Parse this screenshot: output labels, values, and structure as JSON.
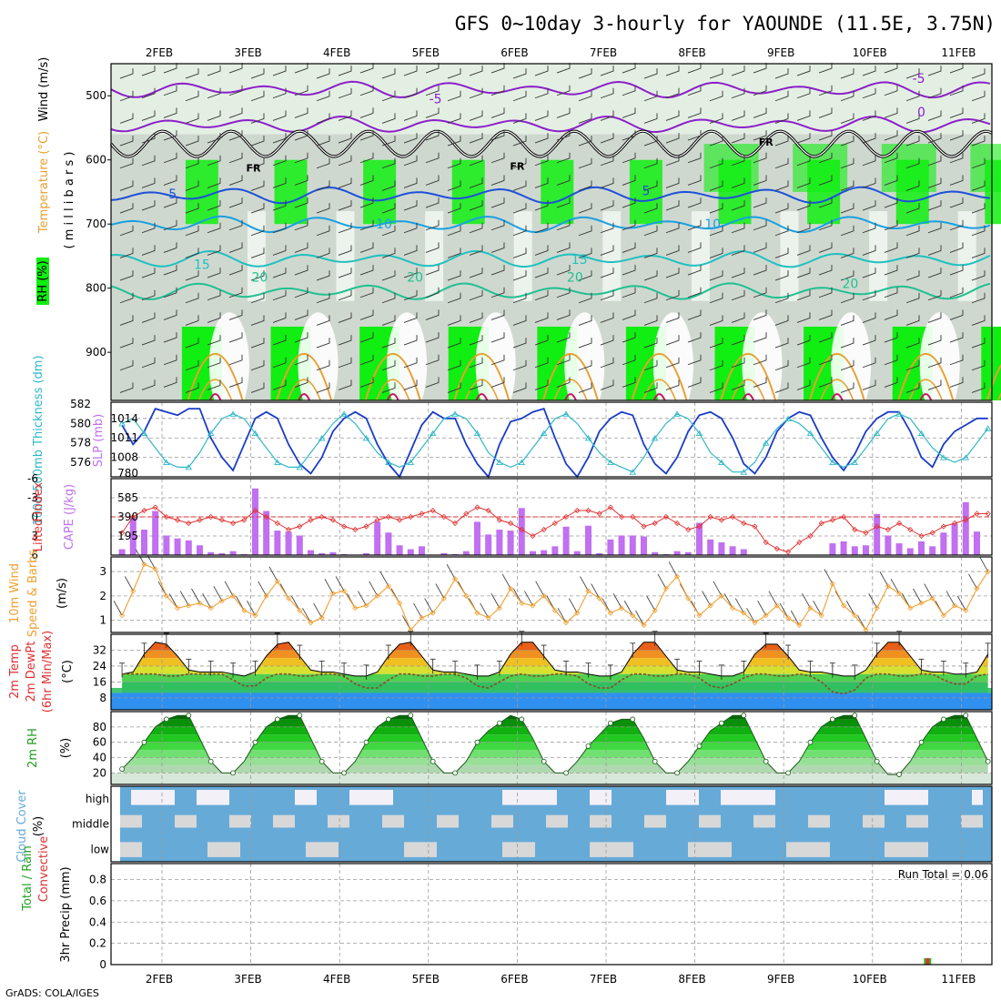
{
  "title": "GFS 0~10day 3-hourly for YAOUNDE (11.5E, 3.75N)",
  "footer": "GrADS: COLA/IGES",
  "dates": [
    "2FEB",
    "3FEB",
    "4FEB",
    "5FEB",
    "6FEB",
    "7FEB",
    "8FEB",
    "9FEB",
    "10FEB",
    "11FEB"
  ],
  "colors": {
    "rh_green": "#11ee11",
    "temp_violet": "#8a20c8",
    "temp_blue": "#1e50d8",
    "temp_sky": "#1aa0e0",
    "temp_teal": "#20c0c0",
    "temp_green": "#20c090",
    "temp_orange": "#e8a030",
    "temp_magenta": "#d0106a",
    "slp": "#1a3cc8",
    "thickness": "#30b8c8",
    "cape": "#c070f0",
    "lifted": "#e03030",
    "wind10": "#f0a030",
    "rh2m": "#20a020",
    "cloud": "#66aad8",
    "cloud_clear": "#d8d8d8",
    "cloud_high_clear": "#f4f0f8"
  },
  "chart_data": [
    {
      "type": "heatmap",
      "panel": "upper-air",
      "ylabel_parts": [
        "RH (%)",
        "Temperature (°C)",
        "Wind (m/s)"
      ],
      "ylabel_unit": "( m i l l i b a r s )",
      "y_ticks": [
        500,
        600,
        700,
        800,
        900
      ],
      "ylim": [
        975,
        450
      ],
      "temperature_contours": [
        {
          "label": "-5",
          "pressure": 490,
          "color_key": "temp_violet"
        },
        {
          "label": "0",
          "pressure": 545,
          "color_key": "temp_violet"
        },
        {
          "label": "5",
          "pressure": 655,
          "color_key": "temp_blue"
        },
        {
          "label": "10",
          "pressure": 700,
          "color_key": "temp_sky"
        },
        {
          "label": "15",
          "pressure": 755,
          "color_key": "temp_teal"
        },
        {
          "label": "20",
          "pressure": 805,
          "color_key": "temp_green"
        }
      ],
      "contour_labels": [
        {
          "text": "-5",
          "day": 3.08,
          "pressure": 512,
          "color_key": "temp_violet"
        },
        {
          "text": "-5",
          "day": 8.52,
          "pressure": 480,
          "color_key": "temp_violet"
        },
        {
          "text": "0",
          "day": 8.55,
          "pressure": 532,
          "color_key": "temp_violet"
        },
        {
          "text": "5",
          "day": 0.12,
          "pressure": 660,
          "color_key": "temp_blue"
        },
        {
          "text": "5",
          "day": 5.45,
          "pressure": 655,
          "color_key": "temp_blue"
        },
        {
          "text": "10",
          "day": 2.5,
          "pressure": 707,
          "color_key": "temp_sky"
        },
        {
          "text": "10",
          "day": 6.2,
          "pressure": 707,
          "color_key": "temp_sky"
        },
        {
          "text": "15",
          "day": 0.45,
          "pressure": 770,
          "color_key": "temp_teal"
        },
        {
          "text": "15",
          "day": 4.7,
          "pressure": 762,
          "color_key": "temp_teal"
        },
        {
          "text": "20",
          "day": 1.1,
          "pressure": 790,
          "color_key": "temp_green"
        },
        {
          "text": "20",
          "day": 2.85,
          "pressure": 790,
          "color_key": "temp_green"
        },
        {
          "text": "20",
          "day": 4.65,
          "pressure": 790,
          "color_key": "temp_green"
        },
        {
          "text": "20",
          "day": 7.75,
          "pressure": 800,
          "color_key": "temp_green"
        }
      ],
      "freezing_labels": [
        {
          "text": "FR",
          "day": 1.03,
          "pressure": 618
        },
        {
          "text": "FR",
          "day": 4.0,
          "pressure": 615
        },
        {
          "text": "FR",
          "day": 6.8,
          "pressure": 578
        }
      ]
    },
    {
      "type": "line",
      "panel": "slp-thickness",
      "ylabel_left": "1000-500mb Thickness (dm)",
      "ylabel_right": "SLP (mb)",
      "left_ticks": [
        576,
        578,
        580,
        582
      ],
      "right_ticks": [
        1008,
        1011,
        1014
      ],
      "left_lim": [
        574.5,
        582.2
      ],
      "right_lim": [
        1005,
        1016.5
      ],
      "series": [
        {
          "name": "SLP (mb)",
          "color_key": "slp",
          "values": [
            1013,
            1010,
            1012,
            1015.5,
            1015,
            1014.5,
            1015.5,
            1015.5,
            1011,
            1008,
            1006,
            1010,
            1014,
            1015,
            1014,
            1010,
            1007,
            1005.5,
            1008,
            1012,
            1014,
            1015,
            1014,
            1010,
            1007,
            1005,
            1009,
            1013,
            1015,
            1014,
            1014,
            1010,
            1007,
            1005,
            1010,
            1013.5,
            1014,
            1015,
            1015.5,
            1011,
            1007,
            1005,
            1008,
            1012,
            1014,
            1015,
            1014.5,
            1010,
            1007,
            1005.5,
            1008,
            1012,
            1014.5,
            1015,
            1014,
            1011,
            1007,
            1005.5,
            1008,
            1012,
            1014,
            1015,
            1014.5,
            1011,
            1008,
            1006,
            1008.5,
            1012,
            1014,
            1015,
            1015,
            1012,
            1008,
            1006.5,
            1010,
            1012,
            1013,
            1014,
            1014,
            1011,
            1008,
            1006,
            1008.5,
            1012,
            1013.5,
            1014,
            1015,
            1012.5,
            1009,
            1006,
            1008.5,
            1011,
            1012,
            1013,
            1013,
            1011,
            1008,
            1008,
            1009.5,
            1011,
            1012.5
          ]
        },
        {
          "name": "Thickness (dm)",
          "color_key": "thickness",
          "values": [
            580,
            580.5,
            579,
            577.5,
            576,
            575.5,
            575.5,
            577,
            579,
            580.5,
            581,
            580.5,
            579,
            577.5,
            576,
            575.5,
            575.5,
            577,
            578.5,
            580,
            581,
            580,
            578.5,
            577,
            576,
            575.5,
            576,
            577.5,
            579,
            580.5,
            581,
            580.5,
            579,
            577,
            576,
            575.5,
            576,
            577.5,
            579,
            580.5,
            581,
            580,
            578.5,
            577,
            576,
            575.5,
            575,
            576.5,
            578.5,
            580,
            581,
            580.5,
            579,
            577,
            576,
            575,
            575,
            576,
            578,
            579.5,
            580.5,
            580,
            579,
            577.5,
            576,
            575.5,
            576,
            577.5,
            579,
            580.5,
            581,
            580.5,
            579,
            577.5,
            576.5,
            576,
            576.5,
            578,
            579.5,
            580.5,
            581,
            580.5,
            579,
            578,
            577,
            576.5,
            577,
            578.5,
            579.5,
            580.5,
            581,
            580.5,
            579.5,
            578,
            577,
            576,
            576.5,
            577,
            578.5
          ]
        }
      ]
    },
    {
      "type": "bar",
      "panel": "cape-lifted-index",
      "ylabel_left": "Lifted Index",
      "ylabel_right": "CAPE (J/kg)",
      "left_ticks": [
        "-6",
        "-3",
        "0",
        "3",
        "6"
      ],
      "right_ticks": [
        195,
        390,
        585,
        780
      ],
      "left_lim": [
        6,
        -6
      ],
      "right_lim": [
        0,
        780
      ],
      "cape": [
        60,
        380,
        260,
        450,
        200,
        170,
        150,
        100,
        30,
        20,
        40,
        10,
        680,
        450,
        250,
        240,
        200,
        50,
        20,
        30,
        10,
        0,
        20,
        340,
        230,
        100,
        60,
        90,
        0,
        20,
        10,
        40,
        340,
        210,
        260,
        250,
        480,
        40,
        50,
        90,
        290,
        40,
        300,
        20,
        160,
        200,
        200,
        190,
        30,
        10,
        40,
        30,
        330,
        160,
        130,
        90,
        60,
        0,
        0,
        0,
        0,
        0,
        0,
        0,
        120,
        140,
        90,
        100,
        420,
        200,
        120,
        70,
        140,
        90,
        230,
        320,
        540,
        240,
        210,
        210,
        220,
        220,
        120,
        200,
        250,
        390,
        360,
        340,
        180,
        120,
        10,
        80,
        330,
        230,
        250,
        120
      ],
      "lifted_index": [
        2.5,
        0,
        -1,
        -1.5,
        0,
        0.5,
        1,
        0.5,
        0,
        0.5,
        1,
        0.5,
        -1,
        0,
        1,
        2,
        1.5,
        0.5,
        0,
        0.5,
        1.5,
        2,
        1.5,
        0.5,
        0,
        0.5,
        0,
        -0.5,
        -1,
        0,
        1,
        -0.5,
        -1.5,
        -1,
        0.5,
        1,
        2,
        3,
        2,
        1,
        0,
        -1,
        -1,
        -0.5,
        -1.5,
        0,
        0,
        1.5,
        1,
        0,
        1,
        2,
        1.5,
        0,
        0.5,
        0,
        1,
        1.5,
        4,
        5,
        5.5,
        4,
        3,
        1,
        0.5,
        0,
        2,
        2.5,
        1.5,
        2,
        1,
        2,
        3,
        2.5,
        1.5,
        1,
        0.5,
        -0.5,
        -0.5,
        0,
        0.5,
        1.5,
        1.5,
        0.5,
        1,
        1,
        0.5,
        0,
        -0.5,
        -0.5,
        0,
        0.5,
        1,
        1,
        0.5,
        0.5
      ]
    },
    {
      "type": "line",
      "panel": "wind10m",
      "ylabel_parts": [
        "10m Wind",
        "Speed & Barbs"
      ],
      "ylabel_unit": "(m/s)",
      "y_ticks": [
        1,
        2,
        3
      ],
      "ylim": [
        0.5,
        3.6
      ],
      "values": [
        1.2,
        2.2,
        3.3,
        3.1,
        2.0,
        1.5,
        1.6,
        1.7,
        1.5,
        1.8,
        2.0,
        1.4,
        1.2,
        2.0,
        2.6,
        1.9,
        1.4,
        0.9,
        1.1,
        2.1,
        2.2,
        1.5,
        1.6,
        2.0,
        2.4,
        1.7,
        0.6,
        1.1,
        1.3,
        1.9,
        2.7,
        2.0,
        1.3,
        1.1,
        1.5,
        2.3,
        1.7,
        1.6,
        2.0,
        1.4,
        0.9,
        1.3,
        2.2,
        1.9,
        1.3,
        1.5,
        1.2,
        0.8,
        1.4,
        2.3,
        2.8,
        1.9,
        1.2,
        1.6,
        2.0,
        1.5,
        1.3,
        0.9,
        1.2,
        1.6,
        1.1,
        0.8,
        1.5,
        1.2,
        2.5,
        1.6,
        1.2,
        0.6,
        1.5,
        2.4,
        2.1,
        1.5,
        1.7,
        1.9,
        1.2,
        1.6,
        1.4,
        2.3,
        3.0,
        3.0,
        2.2,
        1.9,
        2.1,
        2.3,
        1.7,
        1.2,
        0.9,
        2.2,
        2.6,
        1.9,
        1.5,
        1.1,
        0.8,
        1.8,
        1.9,
        1.7
      ]
    },
    {
      "type": "area",
      "panel": "temp2m",
      "ylabel_parts": [
        "2m Temp",
        "2m DewPt",
        "(6hr Min/Max)"
      ],
      "ylabel_unit": "(°C)",
      "y_ticks": [
        8,
        16,
        24,
        32
      ],
      "ylim": [
        2,
        40
      ],
      "temperature": [
        20,
        21,
        30,
        36,
        35,
        29,
        22,
        21,
        21,
        21,
        20,
        19,
        21,
        29,
        35,
        36,
        29,
        22,
        21,
        21,
        20,
        19,
        19,
        21,
        29,
        35,
        36,
        29,
        22,
        21,
        21,
        20,
        19,
        19,
        21,
        30,
        36,
        36,
        29,
        22,
        21,
        21,
        20,
        19,
        19,
        21,
        30,
        36,
        36,
        29,
        22,
        21,
        21,
        20,
        19,
        19,
        21,
        30,
        35,
        35,
        29,
        22,
        21,
        21,
        20,
        19,
        19,
        22,
        30,
        36,
        36,
        29,
        22,
        21,
        21,
        20,
        20,
        21,
        30,
        34,
        33,
        27,
        21,
        21,
        21,
        20,
        20,
        21,
        29,
        34,
        33,
        27,
        21,
        21,
        21,
        20,
        21
      ],
      "dewpoint": [
        20,
        20,
        20,
        20,
        19,
        19,
        20,
        20,
        20,
        20,
        17,
        14,
        14,
        18,
        20,
        20,
        19,
        19,
        20,
        20,
        19,
        15,
        13,
        13,
        17,
        20,
        20,
        19,
        19,
        20,
        20,
        18,
        14,
        13,
        16,
        19,
        20,
        19,
        19,
        20,
        20,
        19,
        15,
        13,
        13,
        17,
        20,
        20,
        19,
        19,
        20,
        20,
        18,
        14,
        13,
        15,
        18,
        20,
        20,
        19,
        19,
        20,
        19,
        16,
        11,
        10,
        12,
        18,
        20,
        20,
        19,
        19,
        20,
        20,
        17,
        15,
        15,
        19,
        20,
        20,
        19,
        19,
        20,
        20,
        17,
        14,
        13,
        16,
        19,
        20,
        19,
        19,
        20,
        20,
        18,
        17,
        18
      ]
    },
    {
      "type": "area",
      "panel": "rh2m",
      "ylabel": "2m RH",
      "ylabel_unit": "(%)",
      "y_ticks": [
        20,
        40,
        60,
        80
      ],
      "ylim": [
        5,
        100
      ],
      "values": [
        25,
        40,
        60,
        80,
        90,
        95,
        95,
        65,
        35,
        20,
        20,
        35,
        60,
        80,
        90,
        95,
        95,
        65,
        35,
        20,
        20,
        35,
        60,
        80,
        90,
        95,
        95,
        65,
        35,
        20,
        20,
        35,
        60,
        75,
        85,
        95,
        90,
        65,
        35,
        20,
        20,
        35,
        55,
        70,
        85,
        90,
        90,
        65,
        35,
        20,
        20,
        35,
        55,
        75,
        85,
        95,
        95,
        65,
        35,
        20,
        20,
        35,
        60,
        80,
        90,
        95,
        95,
        65,
        35,
        18,
        18,
        35,
        60,
        80,
        90,
        95,
        95,
        65,
        35,
        25,
        25,
        40,
        60,
        75,
        85,
        90,
        85,
        60,
        35,
        25,
        25,
        40,
        60,
        75,
        85,
        95,
        90
      ]
    },
    {
      "type": "heatmap",
      "panel": "cloud-cover",
      "ylabel": "Cloud Cover",
      "ylabel_unit": "(%)",
      "levels": [
        "high",
        "middle",
        "low"
      ]
    },
    {
      "type": "bar",
      "panel": "precip",
      "ylabel_parts": [
        "Total / Rain",
        "Convective"
      ],
      "ylabel_unit": "3hr Precip (mm)",
      "y_ticks": [
        "0",
        "0.2",
        "0.4",
        "0.6",
        "0.8"
      ],
      "ylim": [
        0,
        0.95
      ],
      "run_total": "Run Total = 0.06",
      "bars": [
        {
          "day": 8.62,
          "total": 0.06,
          "convective": 0.06
        }
      ]
    }
  ]
}
